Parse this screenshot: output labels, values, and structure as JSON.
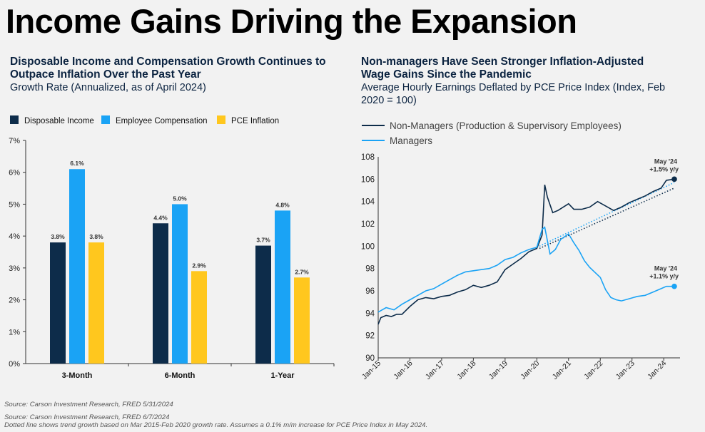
{
  "header": {
    "title": "Income Gains Driving the Expansion"
  },
  "left_panel": {
    "title_line1": "Disposable Income and Compensation Growth Continues to",
    "title_line2": "Outpace Inflation Over the Past Year",
    "subtitle": "Growth Rate (Annualized, as of April 2024)"
  },
  "right_panel": {
    "title_line1": "Non-managers Have Seen Stronger Inflation-Adjusted",
    "title_line2": "Wage Gains Since the Pandemic",
    "subtitle_line1": "Average Hourly Earnings Deflated by PCE Price Index (Index, Feb",
    "subtitle_line2": "2020 = 100)"
  },
  "sources": {
    "left": "Source: Carson Investment Research, FRED 5/31/2024",
    "right_line1": "Source: Carson Investment Research, FRED 6/7/2024",
    "right_line2": "Dotted line shows trend growth based on Mar 2015-Feb 2020 growth rate. Assumes a 0.1% m/m increase for PCE Price Index in May 2024."
  },
  "chart_data": [
    {
      "type": "bar",
      "categories": [
        "3-Month",
        "6-Month",
        "1-Year"
      ],
      "series": [
        {
          "name": "Disposable Income",
          "color": "#0d2c4a",
          "values": [
            3.8,
            4.4,
            3.7
          ],
          "labels": [
            "3.8%",
            "4.4%",
            "3.7%"
          ]
        },
        {
          "name": "Employee Compensation",
          "color": "#1aa3f5",
          "values": [
            6.1,
            5.0,
            4.8
          ],
          "labels": [
            "6.1%",
            "5.0%",
            "4.8%"
          ]
        },
        {
          "name": "PCE Inflation",
          "color": "#ffc71e",
          "values": [
            3.8,
            2.9,
            2.7
          ],
          "labels": [
            "3.8%",
            "2.9%",
            "2.7%"
          ]
        }
      ],
      "ylim": [
        0,
        7
      ],
      "yticks": [
        "0%",
        "1%",
        "2%",
        "3%",
        "4%",
        "5%",
        "6%",
        "7%"
      ],
      "legend": "top",
      "grid": false
    },
    {
      "type": "line",
      "x_start": "2015-01",
      "x_end": "2024-05",
      "xticks": [
        "Jan-15",
        "Jan-16",
        "Jan-17",
        "Jan-18",
        "Jan-19",
        "Jan-20",
        "Jan-21",
        "Jan-22",
        "Jan-23",
        "Jan-24"
      ],
      "ylim": [
        90,
        108
      ],
      "yticks": [
        "90",
        "92",
        "94",
        "96",
        "98",
        "100",
        "102",
        "104",
        "106",
        "108"
      ],
      "legend": "top-left",
      "grid": false,
      "series": [
        {
          "name": "Non-Managers (Production & Supervisory Employees)",
          "color": "#0d2c4a",
          "points": [
            [
              "2015-01",
              93.0
            ],
            [
              "2015-02",
              93.6
            ],
            [
              "2015-04",
              93.8
            ],
            [
              "2015-06",
              93.7
            ],
            [
              "2015-08",
              93.9
            ],
            [
              "2015-10",
              93.9
            ],
            [
              "2016-01",
              94.6
            ],
            [
              "2016-04",
              95.2
            ],
            [
              "2016-07",
              95.4
            ],
            [
              "2016-10",
              95.3
            ],
            [
              "2017-01",
              95.5
            ],
            [
              "2017-04",
              95.6
            ],
            [
              "2017-07",
              95.9
            ],
            [
              "2017-10",
              96.1
            ],
            [
              "2018-01",
              96.5
            ],
            [
              "2018-04",
              96.3
            ],
            [
              "2018-07",
              96.5
            ],
            [
              "2018-10",
              96.8
            ],
            [
              "2019-01",
              97.9
            ],
            [
              "2019-04",
              98.4
            ],
            [
              "2019-07",
              98.9
            ],
            [
              "2019-10",
              99.5
            ],
            [
              "2020-01",
              99.8
            ],
            [
              "2020-03",
              101.0
            ],
            [
              "2020-04",
              105.5
            ],
            [
              "2020-05",
              104.4
            ],
            [
              "2020-07",
              103.0
            ],
            [
              "2020-09",
              103.2
            ],
            [
              "2021-01",
              103.8
            ],
            [
              "2021-03",
              103.3
            ],
            [
              "2021-06",
              103.3
            ],
            [
              "2021-09",
              103.5
            ],
            [
              "2021-12",
              104.0
            ],
            [
              "2022-03",
              103.6
            ],
            [
              "2022-06",
              103.2
            ],
            [
              "2022-09",
              103.5
            ],
            [
              "2022-12",
              103.9
            ],
            [
              "2023-03",
              104.2
            ],
            [
              "2023-06",
              104.5
            ],
            [
              "2023-09",
              104.9
            ],
            [
              "2023-12",
              105.2
            ],
            [
              "2024-02",
              105.9
            ],
            [
              "2024-05",
              106.0
            ]
          ],
          "end_label_line1": "May '24",
          "end_label_line2": "+1.5% y/y"
        },
        {
          "name": "Managers",
          "color": "#1aa3f5",
          "points": [
            [
              "2015-01",
              94.1
            ],
            [
              "2015-04",
              94.5
            ],
            [
              "2015-07",
              94.3
            ],
            [
              "2015-10",
              94.8
            ],
            [
              "2016-01",
              95.2
            ],
            [
              "2016-04",
              95.6
            ],
            [
              "2016-07",
              96.0
            ],
            [
              "2016-10",
              96.2
            ],
            [
              "2017-01",
              96.6
            ],
            [
              "2017-04",
              97.0
            ],
            [
              "2017-07",
              97.4
            ],
            [
              "2017-10",
              97.7
            ],
            [
              "2018-01",
              97.8
            ],
            [
              "2018-04",
              97.9
            ],
            [
              "2018-07",
              98.0
            ],
            [
              "2018-10",
              98.3
            ],
            [
              "2019-01",
              98.8
            ],
            [
              "2019-04",
              99.0
            ],
            [
              "2019-07",
              99.4
            ],
            [
              "2019-10",
              99.7
            ],
            [
              "2020-01",
              99.9
            ],
            [
              "2020-03",
              101.5
            ],
            [
              "2020-04",
              101.7
            ],
            [
              "2020-06",
              99.3
            ],
            [
              "2020-08",
              99.7
            ],
            [
              "2020-10",
              100.6
            ],
            [
              "2021-01",
              101.1
            ],
            [
              "2021-03",
              100.3
            ],
            [
              "2021-05",
              99.6
            ],
            [
              "2021-07",
              98.7
            ],
            [
              "2021-09",
              98.1
            ],
            [
              "2022-01",
              97.2
            ],
            [
              "2022-03",
              96.1
            ],
            [
              "2022-05",
              95.4
            ],
            [
              "2022-07",
              95.2
            ],
            [
              "2022-09",
              95.1
            ],
            [
              "2022-12",
              95.3
            ],
            [
              "2023-03",
              95.5
            ],
            [
              "2023-06",
              95.6
            ],
            [
              "2023-09",
              95.9
            ],
            [
              "2023-12",
              96.2
            ],
            [
              "2024-02",
              96.4
            ],
            [
              "2024-05",
              96.4
            ]
          ],
          "end_label_line1": "May '24",
          "end_label_line2": "+1.1% y/y"
        }
      ],
      "trend_lines": [
        {
          "color": "#0d2c4a",
          "style": "dotted",
          "from": [
            "2020-02",
            99.8
          ],
          "to": [
            "2024-05",
            105.2
          ]
        },
        {
          "color": "#1aa3f5",
          "style": "dotted",
          "from": [
            "2020-02",
            100.0
          ],
          "to": [
            "2024-05",
            105.7
          ]
        }
      ]
    }
  ]
}
